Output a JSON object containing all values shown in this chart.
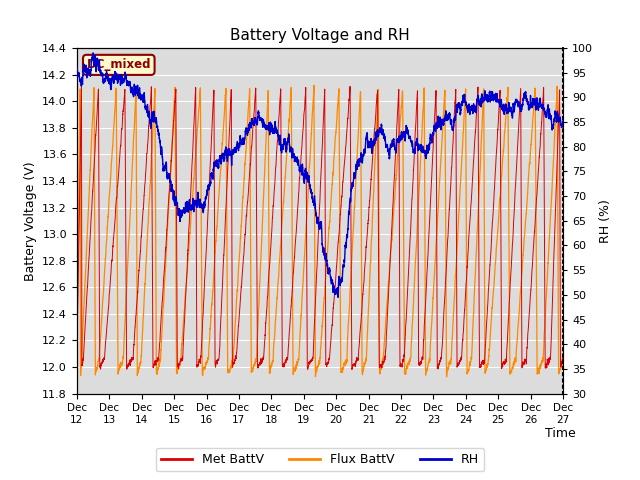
{
  "title": "Battery Voltage and RH",
  "xlabel": "Time",
  "ylabel_left": "Battery Voltage (V)",
  "ylabel_right": "RH (%)",
  "ylim_left": [
    11.8,
    14.4
  ],
  "ylim_right": [
    30,
    100
  ],
  "yticks_left": [
    11.8,
    12.0,
    12.2,
    12.4,
    12.6,
    12.8,
    13.0,
    13.2,
    13.4,
    13.6,
    13.8,
    14.0,
    14.2,
    14.4
  ],
  "yticks_right": [
    30,
    35,
    40,
    45,
    50,
    55,
    60,
    65,
    70,
    75,
    80,
    85,
    90,
    95,
    100
  ],
  "color_met": "#DD0000",
  "color_flux": "#FF8800",
  "color_rh": "#0000CC",
  "annotation_text": "DC_mixed",
  "annotation_color": "#8B0000",
  "annotation_bg": "#FFFACD",
  "legend_labels": [
    "Met BattV",
    "Flux BattV",
    "RH"
  ],
  "x_tick_labels": [
    "Dec 12",
    "Dec 13",
    "Dec 14",
    "Dec 15",
    "Dec 16",
    "Dec 17",
    "Dec 18",
    "Dec 19",
    "Dec 20",
    "Dec 21",
    "Dec 22",
    "Dec 23",
    "Dec 24",
    "Dec 25",
    "Dec 26",
    "Dec 27"
  ],
  "plot_bg_color": "#DCDCDC",
  "grid_color": "#FFFFFF",
  "n_points": 5000
}
